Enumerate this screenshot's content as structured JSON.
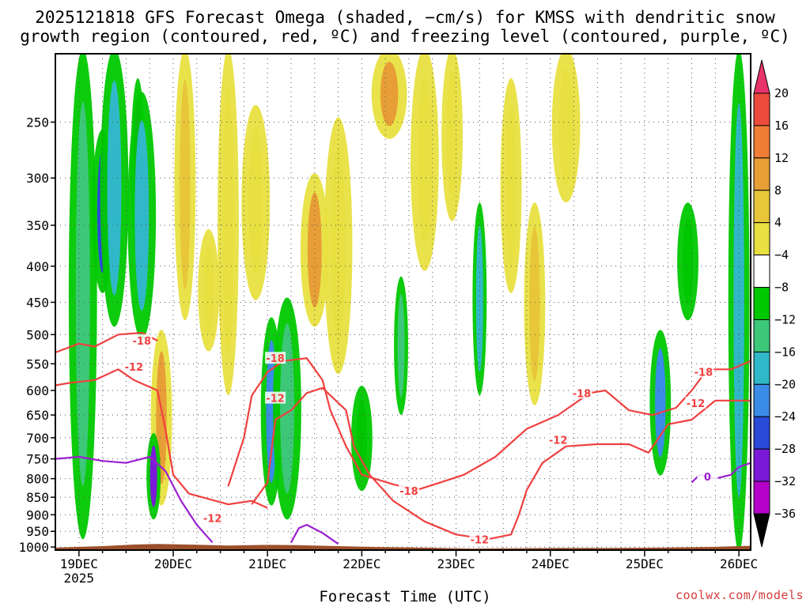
{
  "chart_data": {
    "type": "heatmap",
    "title_line1": "2025121818 GFS Forecast Omega (shaded, −cm/s) for KMSS with dendritic snow",
    "title_line2": "growth region (contoured, red, ºC) and freezing level (contoured, purple, ºC)",
    "xlabel": "Forecast Time (UTC)",
    "credit": "coolwx.com/models",
    "y_axis": {
      "ticks": [
        250,
        300,
        350,
        400,
        450,
        500,
        550,
        600,
        650,
        700,
        750,
        800,
        850,
        900,
        950,
        1000
      ],
      "ylim": [
        200,
        1010
      ]
    },
    "x_axis": {
      "tick_labels": [
        "19DEC",
        "20DEC",
        "21DEC",
        "22DEC",
        "23DEC",
        "24DEC",
        "25DEC",
        "26DEC"
      ],
      "year_label": "2025",
      "xlim_hours": [
        -6,
        171
      ]
    },
    "colorbar": {
      "labels": [
        20,
        16,
        12,
        8,
        4,
        -4,
        -8,
        -12,
        -16,
        -20,
        -24,
        -28,
        -32,
        -36
      ],
      "colors": [
        "#e8336a",
        "#ec4a3c",
        "#f07d36",
        "#e89e36",
        "#e8c63a",
        "#e8e040",
        "#ffffff",
        "#00c800",
        "#3cc878",
        "#30b8c8",
        "#3a8ce6",
        "#2a4ad8",
        "#7a1ad8",
        "#b400c8",
        "#b4b4b4",
        "#000000"
      ]
    },
    "omega_features": [
      {
        "t": 1,
        "p": 200,
        "p2": 960,
        "w": 4,
        "v": -10
      },
      {
        "t": 6,
        "p": 260,
        "p2": 430,
        "w": 3,
        "v": -20
      },
      {
        "t": 9,
        "p": 200,
        "p2": 480,
        "w": 4,
        "v": -12
      },
      {
        "t": 15,
        "p": 220,
        "p2": 380,
        "w": 2,
        "v": -28
      },
      {
        "t": 16,
        "p": 230,
        "p2": 500,
        "w": 4,
        "v": -12
      },
      {
        "t": 21,
        "p": 500,
        "p2": 860,
        "w": 3,
        "v": 8
      },
      {
        "t": 19,
        "p": 700,
        "p2": 900,
        "w": 2,
        "v": -24
      },
      {
        "t": 27,
        "p": 200,
        "p2": 470,
        "w": 3,
        "v": 6
      },
      {
        "t": 33,
        "p": 360,
        "p2": 520,
        "w": 3,
        "v": 4
      },
      {
        "t": 38,
        "p": 200,
        "p2": 600,
        "w": 3,
        "v": 5
      },
      {
        "t": 45,
        "p": 240,
        "p2": 440,
        "w": 4,
        "v": 5
      },
      {
        "t": 49,
        "p": 480,
        "p2": 860,
        "w": 3,
        "v": -16
      },
      {
        "t": 53,
        "p": 450,
        "p2": 900,
        "w": 4,
        "v": -10
      },
      {
        "t": 60,
        "p": 300,
        "p2": 480,
        "w": 4,
        "v": 8
      },
      {
        "t": 66,
        "p": 250,
        "p2": 560,
        "w": 4,
        "v": 5
      },
      {
        "t": 72,
        "p": 600,
        "p2": 820,
        "w": 3,
        "v": -6
      },
      {
        "t": 79,
        "p": 200,
        "p2": 260,
        "w": 5,
        "v": 10
      },
      {
        "t": 82,
        "p": 420,
        "p2": 640,
        "w": 2,
        "v": -8
      },
      {
        "t": 88,
        "p": 200,
        "p2": 400,
        "w": 4,
        "v": 5
      },
      {
        "t": 95,
        "p": 200,
        "p2": 340,
        "w": 3,
        "v": 5
      },
      {
        "t": 102,
        "p": 330,
        "p2": 600,
        "w": 2,
        "v": -12
      },
      {
        "t": 110,
        "p": 220,
        "p2": 430,
        "w": 3,
        "v": 5
      },
      {
        "t": 116,
        "p": 330,
        "p2": 620,
        "w": 3,
        "v": 6
      },
      {
        "t": 124,
        "p": 200,
        "p2": 320,
        "w": 4,
        "v": 5
      },
      {
        "t": 148,
        "p": 500,
        "p2": 780,
        "w": 3,
        "v": -16
      },
      {
        "t": 155,
        "p": 330,
        "p2": 470,
        "w": 3,
        "v": -6
      },
      {
        "t": 168,
        "p": 200,
        "p2": 1000,
        "w": 3,
        "v": -14
      }
    ],
    "contours": [
      {
        "name": "dgz-minus18-upper",
        "level": -18,
        "color": "#f04040",
        "points": [
          [
            -6,
            530
          ],
          [
            0,
            515
          ],
          [
            4,
            520
          ],
          [
            10,
            500
          ],
          [
            16,
            497
          ],
          [
            20,
            510
          ]
        ]
      },
      {
        "name": "dgz-minus12-left",
        "level": -12,
        "color": "#f04040",
        "points": [
          [
            -6,
            590
          ],
          [
            -2,
            585
          ],
          [
            4,
            580
          ],
          [
            10,
            560
          ],
          [
            14,
            580
          ],
          [
            20,
            600
          ],
          [
            22,
            680
          ],
          [
            24,
            790
          ],
          [
            28,
            840
          ],
          [
            38,
            870
          ],
          [
            44,
            860
          ],
          [
            48,
            880
          ]
        ]
      },
      {
        "name": "dgz-minus18-mid",
        "level": -18,
        "color": "#f04040",
        "points": [
          [
            38,
            820
          ],
          [
            42,
            700
          ],
          [
            44,
            610
          ],
          [
            48,
            565
          ],
          [
            52,
            545
          ],
          [
            58,
            540
          ],
          [
            62,
            580
          ],
          [
            64,
            640
          ],
          [
            68,
            720
          ],
          [
            72,
            790
          ],
          [
            80,
            815
          ],
          [
            86,
            830
          ]
        ]
      },
      {
        "name": "dgz-minus12-mid",
        "level": -12,
        "color": "#f04040",
        "points": [
          [
            44,
            870
          ],
          [
            48,
            810
          ],
          [
            50,
            660
          ],
          [
            54,
            640
          ],
          [
            58,
            605
          ],
          [
            62,
            595
          ],
          [
            68,
            640
          ],
          [
            70,
            720
          ],
          [
            74,
            790
          ],
          [
            80,
            860
          ],
          [
            88,
            920
          ],
          [
            96,
            960
          ],
          [
            104,
            975
          ],
          [
            110,
            960
          ],
          [
            112,
            900
          ],
          [
            114,
            830
          ],
          [
            118,
            760
          ],
          [
            124,
            720
          ],
          [
            132,
            715
          ],
          [
            140,
            715
          ],
          [
            145,
            735
          ],
          [
            150,
            670
          ],
          [
            156,
            660
          ],
          [
            162,
            620
          ],
          [
            168,
            620
          ],
          [
            171,
            620
          ]
        ]
      },
      {
        "name": "dgz-minus18-right",
        "level": -18,
        "color": "#f04040",
        "points": [
          [
            86,
            830
          ],
          [
            92,
            810
          ],
          [
            98,
            790
          ],
          [
            106,
            745
          ],
          [
            114,
            680
          ],
          [
            122,
            650
          ],
          [
            130,
            605
          ],
          [
            134,
            600
          ],
          [
            140,
            640
          ],
          [
            146,
            650
          ],
          [
            152,
            635
          ],
          [
            156,
            600
          ],
          [
            160,
            560
          ],
          [
            166,
            560
          ],
          [
            171,
            545
          ]
        ]
      },
      {
        "name": "freezing-left",
        "level": 0,
        "color": "#9b1fd0",
        "points": [
          [
            -6,
            750
          ],
          [
            0,
            745
          ],
          [
            6,
            755
          ],
          [
            12,
            760
          ],
          [
            18,
            745
          ],
          [
            22,
            780
          ],
          [
            26,
            860
          ],
          [
            30,
            930
          ],
          [
            34,
            985
          ]
        ]
      },
      {
        "name": "freezing-mid",
        "level": 0,
        "color": "#9b1fd0",
        "points": [
          [
            54,
            985
          ],
          [
            56,
            940
          ],
          [
            58,
            930
          ],
          [
            62,
            955
          ],
          [
            66,
            990
          ]
        ]
      },
      {
        "name": "freezing-right",
        "level": 0,
        "color": "#9b1fd0",
        "points": [
          [
            156,
            810
          ],
          [
            158,
            790
          ],
          [
            162,
            800
          ],
          [
            166,
            790
          ],
          [
            168,
            770
          ],
          [
            171,
            760
          ]
        ]
      }
    ],
    "contour_labels": [
      {
        "text": "-18",
        "t": 16,
        "p": 510,
        "color": "#f04040"
      },
      {
        "text": "-12",
        "t": 14,
        "p": 555,
        "color": "#f04040"
      },
      {
        "text": "-18",
        "t": 50,
        "p": 540,
        "color": "#f04040"
      },
      {
        "text": "-12",
        "t": 50,
        "p": 615,
        "color": "#f04040"
      },
      {
        "text": "-12",
        "t": 34,
        "p": 910,
        "color": "#f04040"
      },
      {
        "text": "-18",
        "t": 84,
        "p": 832,
        "color": "#f04040"
      },
      {
        "text": "-12",
        "t": 102,
        "p": 975,
        "color": "#f04040"
      },
      {
        "text": "-18",
        "t": 128,
        "p": 605,
        "color": "#f04040"
      },
      {
        "text": "-12",
        "t": 122,
        "p": 705,
        "color": "#f04040"
      },
      {
        "text": "-18",
        "t": 159,
        "p": 565,
        "color": "#f04040"
      },
      {
        "text": "-12",
        "t": 157,
        "p": 625,
        "color": "#f04040"
      },
      {
        "text": "0",
        "t": 160,
        "p": 795,
        "color": "#9b1fd0"
      }
    ],
    "terrain_color": "#9b4f2a"
  }
}
